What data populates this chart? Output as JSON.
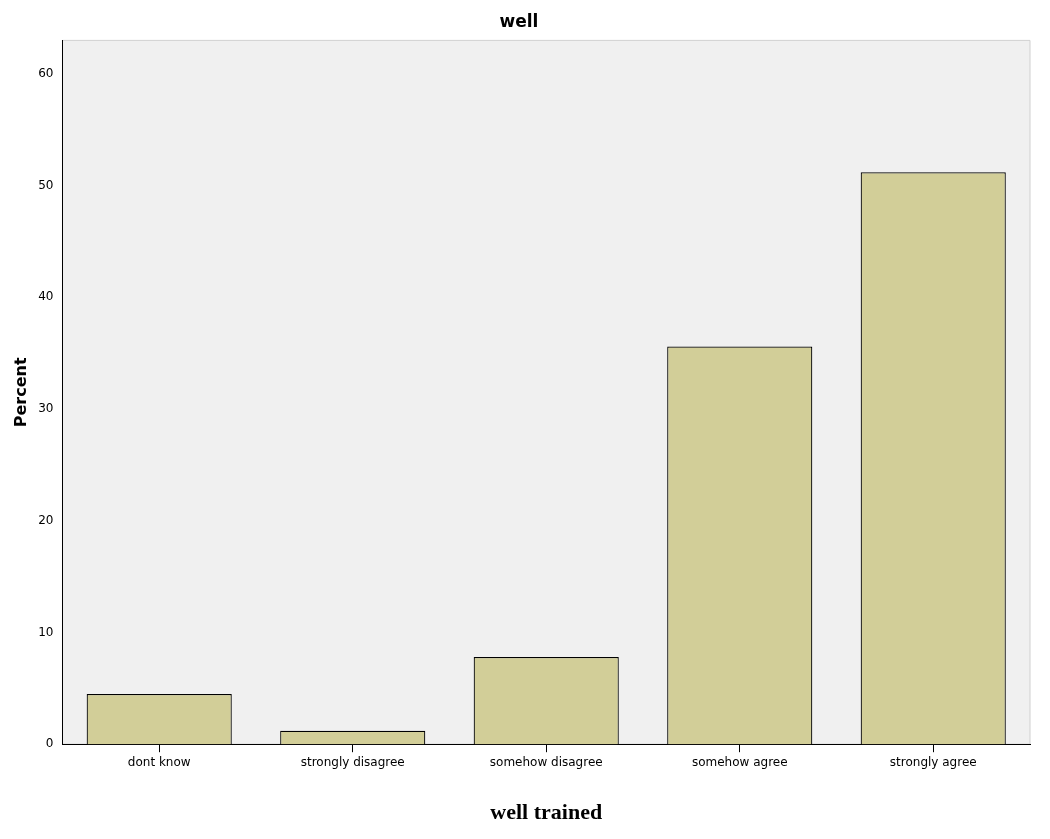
{
  "chart_data": {
    "type": "bar",
    "title": "well",
    "xlabel": "well trained",
    "ylabel": "Percent",
    "categories": [
      "dont know",
      "strongly disagree",
      "somehow disagree",
      "somehow agree",
      "strongly agree"
    ],
    "values": [
      4.5,
      1.2,
      7.8,
      35.6,
      51.2
    ],
    "color": "#d2ce98",
    "ylim": [
      0,
      63
    ],
    "yticks": [
      0,
      10,
      20,
      30,
      40,
      50,
      60
    ],
    "grid": false,
    "legend": false
  }
}
